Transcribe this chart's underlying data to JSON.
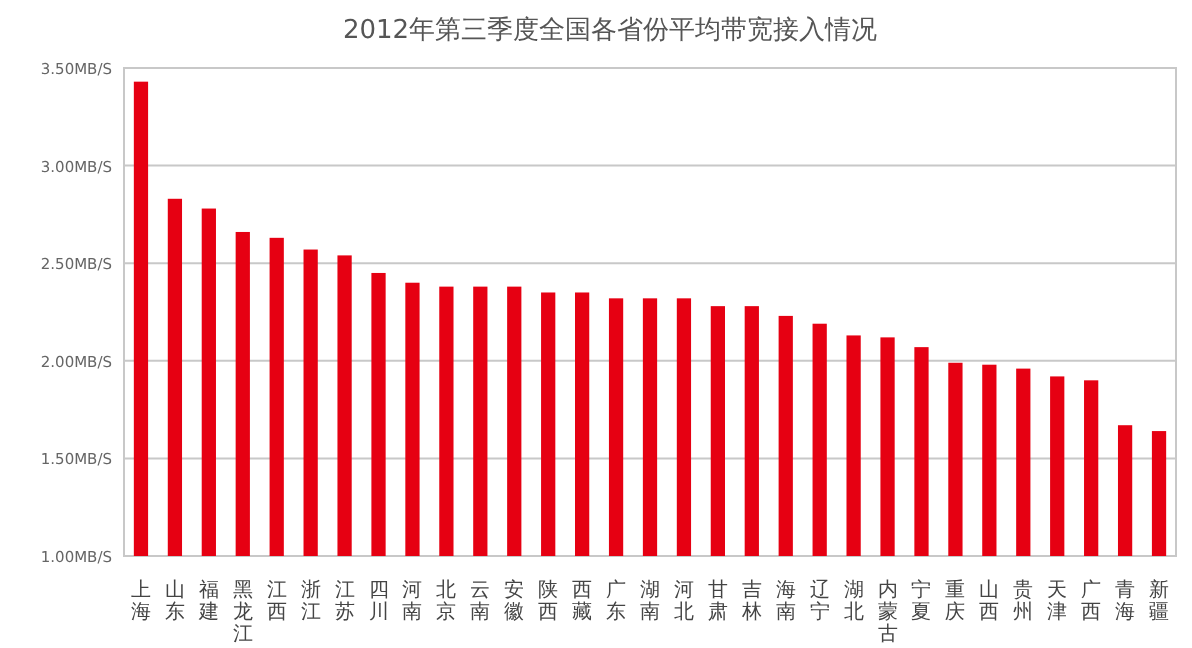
{
  "chart_data": {
    "type": "bar",
    "title": "2012年第三季度全国各省份平均带宽接入情况",
    "categories": [
      "上海",
      "山东",
      "福建",
      "黑龙江",
      "江西",
      "浙江",
      "江苏",
      "四川",
      "河南",
      "北京",
      "云南",
      "安徽",
      "陕西",
      "西藏",
      "广东",
      "湖南",
      "河北",
      "甘肃",
      "吉林",
      "海南",
      "辽宁",
      "湖北",
      "内蒙古",
      "宁夏",
      "重庆",
      "山西",
      "贵州",
      "天津",
      "广西",
      "青海",
      "新疆"
    ],
    "values": [
      3.43,
      2.83,
      2.78,
      2.66,
      2.63,
      2.57,
      2.54,
      2.45,
      2.4,
      2.38,
      2.38,
      2.38,
      2.35,
      2.35,
      2.32,
      2.32,
      2.32,
      2.28,
      2.28,
      2.23,
      2.19,
      2.13,
      2.12,
      2.07,
      1.99,
      1.98,
      1.96,
      1.92,
      1.9,
      1.67,
      1.64
    ],
    "color": "#e60012",
    "ylim": [
      1,
      3.5
    ],
    "yticks": [
      {
        "value": 1,
        "label": "1.00MB/S"
      },
      {
        "value": 1.5,
        "label": "1.50MB/S"
      },
      {
        "value": 2,
        "label": "2.00MB/S"
      },
      {
        "value": 2.5,
        "label": "2.50MB/S"
      },
      {
        "value": 3,
        "label": "3.00MB/S"
      },
      {
        "value": 3.5,
        "label": "3.50MB/S"
      }
    ],
    "grid": "y"
  }
}
